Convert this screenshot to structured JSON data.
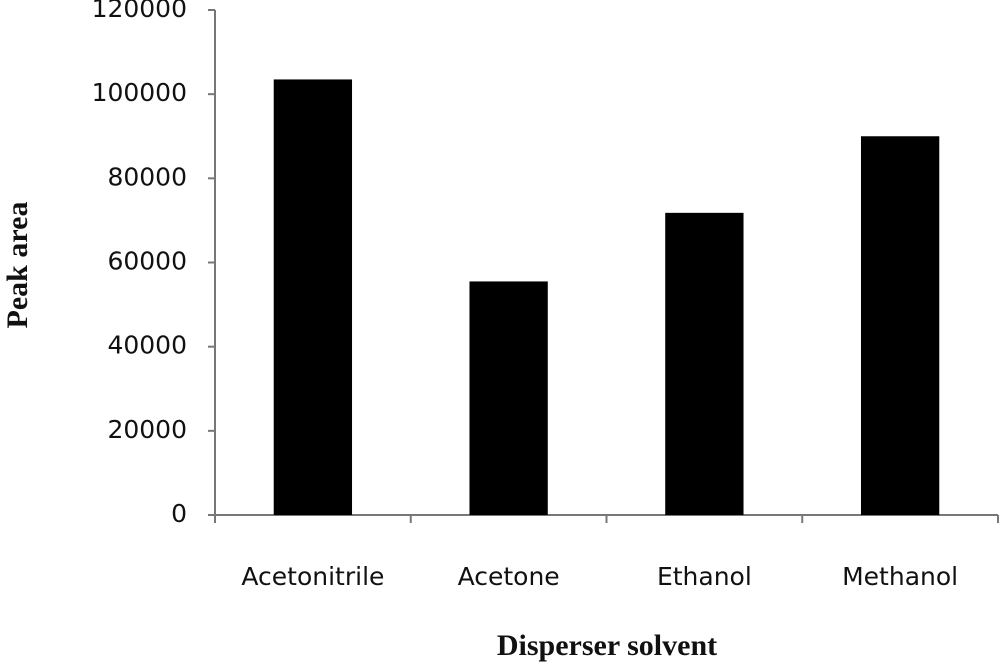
{
  "chart_data": {
    "type": "bar",
    "x_label": "Disperser solvent",
    "y_label": "Peak area",
    "categories": [
      "Acetonitrile",
      "Acetone",
      "Ethanol",
      "Methanol"
    ],
    "values": [
      103500,
      55500,
      71800,
      90000
    ],
    "color": "#000000",
    "ylim": [
      0,
      120000
    ],
    "yticks": [
      0,
      20000,
      40000,
      60000,
      80000,
      100000,
      120000
    ],
    "grid": false
  }
}
